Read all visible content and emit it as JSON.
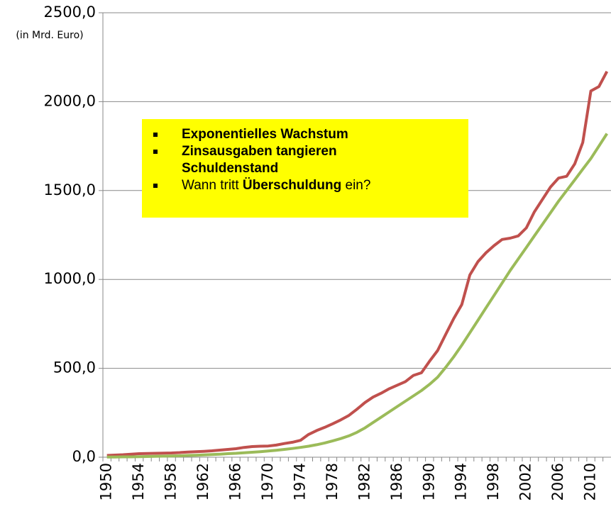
{
  "chart_data": {
    "type": "line",
    "ylabel": "(in Mrd. Euro)",
    "categories": [
      "1950",
      null,
      null,
      null,
      "1954",
      null,
      null,
      null,
      "1958",
      null,
      null,
      null,
      "1962",
      null,
      null,
      null,
      "1966",
      null,
      null,
      null,
      "1970",
      null,
      null,
      null,
      "1974",
      null,
      null,
      null,
      "1978",
      null,
      null,
      null,
      "1982",
      null,
      null,
      null,
      "1986",
      null,
      null,
      null,
      "1990",
      null,
      null,
      null,
      "1994",
      null,
      null,
      null,
      "1998",
      null,
      null,
      null,
      "2002",
      null,
      null,
      null,
      "2006",
      null,
      null,
      null,
      "2010",
      null,
      null
    ],
    "series": [
      {
        "color": "#c0504d",
        "values": [
          10,
          12,
          14,
          17,
          20,
          21,
          22,
          23,
          24,
          26,
          29,
          31,
          33,
          36,
          40,
          44,
          48,
          55,
          60,
          62,
          63,
          68,
          77,
          84,
          95,
          128,
          150,
          168,
          188,
          210,
          235,
          270,
          308,
          338,
          360,
          385,
          405,
          425,
          460,
          475,
          540,
          600,
          690,
          780,
          858,
          1025,
          1100,
          1150,
          1190,
          1225,
          1232,
          1245,
          1290,
          1380,
          1450,
          1520,
          1570,
          1580,
          1650,
          1770,
          2060,
          2085,
          2170
        ]
      },
      {
        "color": "#9bbb59",
        "values": [
          1,
          1,
          2,
          2,
          3,
          4,
          5,
          6,
          7,
          8,
          10,
          11,
          13,
          15,
          17,
          20,
          22,
          25,
          28,
          31,
          35,
          39,
          44,
          49,
          55,
          62,
          70,
          80,
          92,
          105,
          120,
          140,
          165,
          195,
          225,
          255,
          285,
          315,
          345,
          375,
          410,
          450,
          505,
          565,
          630,
          700,
          770,
          840,
          910,
          980,
          1050,
          1115,
          1180,
          1245,
          1310,
          1375,
          1440,
          1500,
          1560,
          1620,
          1680,
          1750,
          1820
        ]
      }
    ],
    "ylim": [
      0,
      2500
    ],
    "yticks": [
      {
        "value": 0,
        "label": "0,0"
      },
      {
        "value": 500,
        "label": "500,0"
      },
      {
        "value": 1000,
        "label": "1000,0"
      },
      {
        "value": 1500,
        "label": "1500,0"
      },
      {
        "value": 2000,
        "label": "2000,0"
      },
      {
        "value": 2500,
        "label": "2500,0"
      }
    ],
    "grid": true,
    "annotation": {
      "color": "#ffff00",
      "items": [
        [
          {
            "text": "Exponentielles Wachstum",
            "bold": true
          }
        ],
        [
          {
            "text": "Zinsausgaben tangieren Schuldenstand",
            "bold": true
          }
        ],
        [
          {
            "text": "Wann tritt ",
            "bold": false
          },
          {
            "text": "Überschuldung",
            "bold": true
          },
          {
            "text": " ein?",
            "bold": false
          }
        ]
      ]
    }
  }
}
